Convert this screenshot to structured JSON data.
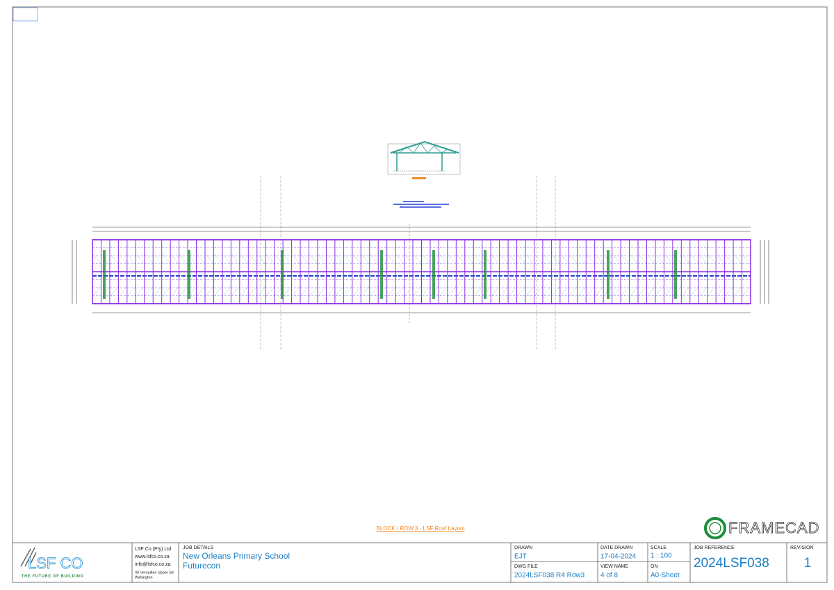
{
  "drawing": {
    "title": "BLOCK / ROW 3 - LSF Roof Layout",
    "brand": "FRAMECAD"
  },
  "logo": {
    "name": "LSF CO",
    "tagline": "THE FUTURE OF BUILDING"
  },
  "company": {
    "name": "LSF Co (Pty) Ltd",
    "web": "www.lsfco.co.za",
    "email": "info@lsfco.co.za",
    "address": [
      "40 Versailles Upper Str",
      "Wellington"
    ]
  },
  "job_details": {
    "label": "JOB DETAILS",
    "project": "New Orleans Primary School",
    "client": "Futurecon"
  },
  "drawn": {
    "label": "DRAWN",
    "value": "EJT"
  },
  "dwg_file": {
    "label": "DWG FILE",
    "value": "2024LSF038 R4 Row3"
  },
  "date_drawn": {
    "label": "DATE DRAWN",
    "value": "17-04-2024"
  },
  "view_name": {
    "label": "VIEW NAME",
    "value": "4 of 8"
  },
  "scale": {
    "label": "SCALE",
    "value": "1 : 100"
  },
  "sheet": {
    "label": "ON",
    "value": "A0-Sheet"
  },
  "job_reference": {
    "label": "JOB REFERENCE",
    "value": "2024LSF038"
  },
  "revision": {
    "label": "REVISION",
    "value": "1"
  }
}
